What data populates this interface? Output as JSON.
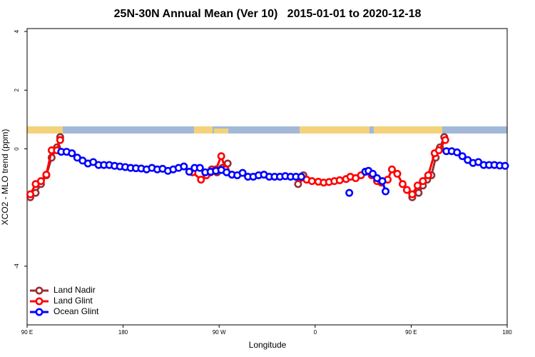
{
  "chart_data": {
    "type": "line",
    "title": "25N-30N Annual Mean (Ver 10)   2015-01-01 to 2020-12-18",
    "x_label": "Longitude",
    "y_label": "XCO2 - MLO trend (ppm)",
    "xlim": [
      90,
      540
    ],
    "ylim": [
      -6,
      4.1
    ],
    "xticks": [
      {
        "value": 90,
        "label": "90 E"
      },
      180,
      {
        "value": 270,
        "label": "90 W"
      },
      {
        "value": 360,
        "label": "0"
      },
      {
        "value": 450,
        "label": "90 E"
      },
      {
        "value": 540,
        "label": "180"
      }
    ],
    "yticks": [
      -4,
      0,
      2,
      4
    ],
    "legend": "bottom-left",
    "series": [
      {
        "name": "Land Nadir",
        "color": "#9b2d30",
        "x": [
          93,
          98,
          103,
          108,
          113,
          118,
          121,
          200,
          263,
          268,
          273,
          278,
          320,
          344,
          349,
          400,
          451,
          457,
          461,
          465,
          469,
          473,
          477,
          481
        ],
        "values": [
          -1.65,
          -1.5,
          -1.2,
          -0.9,
          -0.3,
          0.05,
          0.4,
          null,
          -0.7,
          -0.8,
          -0.65,
          -0.5,
          null,
          -1.2,
          -0.9,
          null,
          -1.65,
          -1.5,
          -1.25,
          -1.05,
          -0.9,
          -0.3,
          0.05,
          0.4
        ]
      },
      {
        "name": "Land Glint",
        "color": "#ff0000",
        "x": [
          93,
          98,
          103,
          108,
          113,
          118,
          121,
          200,
          245,
          253,
          258,
          262,
          267,
          272,
          276,
          320,
          346,
          352,
          357,
          363,
          368,
          373,
          378,
          383,
          389,
          393,
          398,
          403,
          407,
          413,
          418,
          422,
          428,
          432,
          437,
          442,
          446,
          451,
          456,
          461,
          466,
          472,
          476,
          482
        ],
        "values": [
          -1.55,
          -1.2,
          -1.1,
          -0.88,
          -0.05,
          -0.05,
          0.3,
          null,
          -0.8,
          -1.05,
          -0.9,
          -0.8,
          -0.7,
          -0.25,
          -0.7,
          null,
          -1.0,
          -1.05,
          -1.1,
          -1.12,
          -1.15,
          -1.13,
          -1.1,
          -1.07,
          -1.03,
          -0.95,
          -1.0,
          -0.9,
          -0.78,
          -0.9,
          -1.1,
          -1.15,
          -1.05,
          -0.7,
          -0.85,
          -1.2,
          -1.4,
          -1.55,
          -1.25,
          -1.1,
          -0.9,
          -0.15,
          -0.05,
          0.3
        ]
      },
      {
        "name": "Ocean Glint",
        "color": "#0000ff",
        "x": [
          122,
          127,
          132,
          137,
          142,
          147,
          152,
          157,
          162,
          167,
          172,
          177,
          182,
          187,
          192,
          197,
          202,
          207,
          212,
          217,
          222,
          227,
          232,
          237,
          242,
          247,
          252,
          257,
          262,
          267,
          272,
          277,
          282,
          287,
          292,
          297,
          302,
          307,
          312,
          317,
          322,
          327,
          332,
          337,
          342,
          347,
          370,
          392,
          400,
          407,
          410,
          414,
          418,
          423,
          426,
          455,
          483,
          488,
          493,
          498,
          503,
          508,
          513,
          518,
          523,
          528,
          533,
          538
        ],
        "values": [
          -0.1,
          -0.1,
          -0.15,
          -0.3,
          -0.4,
          -0.5,
          -0.45,
          -0.55,
          -0.55,
          -0.55,
          -0.58,
          -0.6,
          -0.62,
          -0.65,
          -0.66,
          -0.67,
          -0.7,
          -0.65,
          -0.7,
          -0.68,
          -0.75,
          -0.7,
          -0.65,
          -0.6,
          -0.78,
          -0.65,
          -0.65,
          -0.8,
          -0.78,
          -0.75,
          -0.72,
          -0.8,
          -0.88,
          -0.9,
          -0.82,
          -0.95,
          -0.95,
          -0.9,
          -0.88,
          -0.95,
          -0.95,
          -0.95,
          -0.93,
          -0.95,
          -0.95,
          -0.95,
          null,
          -1.5,
          null,
          -0.78,
          -0.75,
          -0.85,
          -1.0,
          -1.1,
          -1.45,
          null,
          -0.08,
          -0.08,
          -0.12,
          -0.25,
          -0.38,
          -0.48,
          -0.45,
          -0.55,
          -0.55,
          -0.55,
          -0.57,
          -0.58
        ]
      }
    ]
  }
}
